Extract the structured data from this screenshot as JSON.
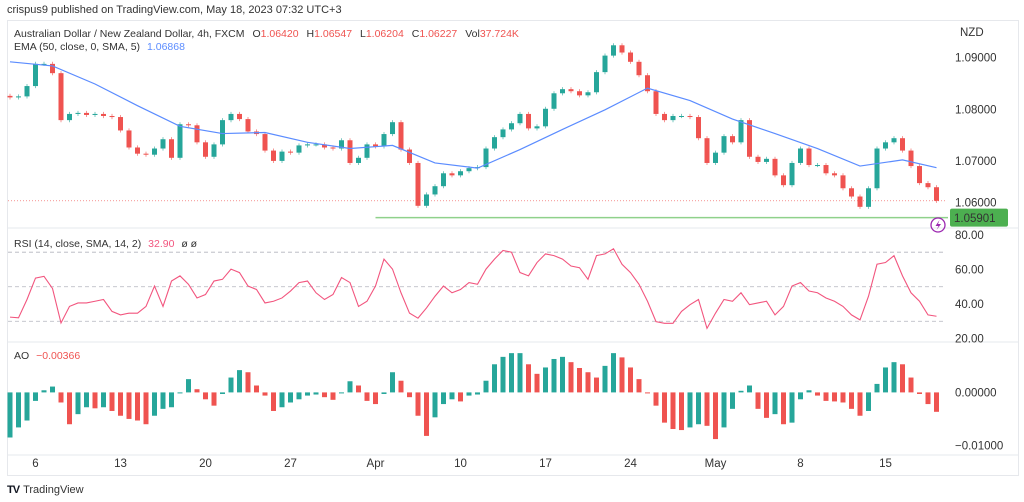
{
  "header": {
    "published": "crispus9 published on TradingView.com, May 18, 2023 07:32 UTC+3"
  },
  "legend": {
    "symbol": "Australian Dollar / New Zealand Dollar, 4h, FXCM",
    "o_label": "O",
    "o": "1.06420",
    "h_label": "H",
    "h": "1.06547",
    "l_label": "L",
    "l": "1.06204",
    "c_label": "C",
    "c": "1.06227",
    "vol_label": "Vol",
    "vol": "37.724K",
    "ema_label": "EMA (50, close, 0, SMA, 5)",
    "ema": "1.06868",
    "rsi_label": "RSI (14, close, SMA, 14, 2)",
    "rsi": "32.90",
    "rsi_extra": "ø  ø",
    "ao_label": "AO",
    "ao": "−0.00366"
  },
  "colors": {
    "up": "#26a69a",
    "down": "#ef5350",
    "ema": "#5b8cff",
    "rsi": "#f2557e",
    "support": "#8fd18b",
    "label_bg": "#4caf50",
    "alert": "#9c27b0"
  },
  "chart_data": [
    {
      "type": "candlestick",
      "currency": "NZD",
      "sampling": "12h",
      "start": "2023-03-02 12:00",
      "ylim": [
        1.057,
        1.0973
      ],
      "yticks": [
        "1.09000",
        "1.08000",
        "1.07000",
        "1.06000"
      ],
      "xticks": [
        {
          "label": "6",
          "date": "2023-03-06"
        },
        {
          "label": "13",
          "date": "2023-03-13"
        },
        {
          "label": "20",
          "date": "2023-03-20"
        },
        {
          "label": "27",
          "date": "2023-03-27"
        },
        {
          "label": "Apr",
          "date": "2023-04-03"
        },
        {
          "label": "10",
          "date": "2023-04-10"
        },
        {
          "label": "17",
          "date": "2023-04-17"
        },
        {
          "label": "24",
          "date": "2023-04-24"
        },
        {
          "label": "May",
          "date": "2023-05-01"
        },
        {
          "label": "8",
          "date": "2023-05-08"
        },
        {
          "label": "15",
          "date": "2023-05-15"
        }
      ],
      "closes": [
        1.0823,
        1.0825,
        1.0845,
        1.0888,
        1.0888,
        1.087,
        1.0779,
        1.0791,
        1.0793,
        1.0789,
        1.0791,
        1.0787,
        1.0785,
        1.0759,
        1.0726,
        1.0714,
        1.0712,
        1.0724,
        1.0742,
        1.0706,
        1.0771,
        1.0769,
        1.0736,
        1.0708,
        1.0732,
        1.0779,
        1.0791,
        1.0781,
        1.0757,
        1.0752,
        1.072,
        1.07,
        1.0718,
        1.0716,
        1.073,
        1.0732,
        1.0732,
        1.0726,
        1.0724,
        1.074,
        1.0696,
        1.0706,
        1.0732,
        1.0728,
        1.0752,
        1.0775,
        1.0722,
        1.0696,
        1.0613,
        1.0635,
        1.0651,
        1.0676,
        1.0672,
        1.068,
        1.0686,
        1.0688,
        1.0724,
        1.0746,
        1.0761,
        1.0773,
        1.0791,
        1.0763,
        1.0767,
        1.0801,
        1.0831,
        1.0839,
        1.0835,
        1.0827,
        1.0833,
        1.0872,
        1.0904,
        1.0924,
        1.091,
        1.0892,
        1.0866,
        1.0835,
        1.0791,
        1.0779,
        1.0787,
        1.0787,
        1.0785,
        1.0744,
        1.0696,
        1.0716,
        1.0748,
        1.0736,
        1.0779,
        1.0708,
        1.0698,
        1.0704,
        1.0672,
        1.0653,
        1.0696,
        1.0724,
        1.0692,
        1.0692,
        1.0676,
        1.0672,
        1.0647,
        1.0631,
        1.0611,
        1.0647,
        1.0724,
        1.0736,
        1.0744,
        1.072,
        1.069,
        1.0657,
        1.0649,
        1.06227
      ],
      "ema": [
        [
          0,
          1.0892
        ],
        [
          5,
          1.0884
        ],
        [
          10,
          1.0849
        ],
        [
          15,
          1.0807
        ],
        [
          20,
          1.0767
        ],
        [
          25,
          1.0753
        ],
        [
          30,
          1.0755
        ],
        [
          35,
          1.0736
        ],
        [
          40,
          1.0724
        ],
        [
          45,
          1.073
        ],
        [
          50,
          1.0696
        ],
        [
          55,
          1.0686
        ],
        [
          60,
          1.0722
        ],
        [
          65,
          1.0761
        ],
        [
          70,
          1.0799
        ],
        [
          75,
          1.0841
        ],
        [
          80,
          1.0817
        ],
        [
          85,
          1.0781
        ],
        [
          90,
          1.0753
        ],
        [
          95,
          1.0724
        ],
        [
          100,
          1.069
        ],
        [
          105,
          1.0702
        ],
        [
          109,
          1.06868
        ]
      ],
      "last_price": 1.06227,
      "support": {
        "value": 1.05901,
        "label": "1.05901",
        "from_date": "2023-04-03"
      }
    },
    {
      "type": "line",
      "name": "RSI",
      "ylim": [
        18,
        84
      ],
      "yticks": [
        "80.00",
        "60.00",
        "40.00",
        "20.00"
      ],
      "bands": [
        70,
        50,
        30
      ],
      "values": [
        32.4,
        32,
        42.6,
        55,
        56,
        49,
        29,
        38.6,
        40.6,
        40.6,
        41.6,
        42.6,
        35.7,
        33.7,
        34.7,
        34.7,
        38.6,
        50.4,
        38.6,
        53.3,
        56.3,
        51.4,
        43.5,
        45.5,
        53.3,
        54.3,
        60.2,
        58.2,
        50.4,
        48.4,
        40.6,
        41.6,
        43.5,
        47.5,
        52.4,
        53.3,
        46.5,
        42.6,
        45.5,
        55.3,
        52.4,
        38.6,
        41.6,
        50.4,
        66,
        60.2,
        46.5,
        34.7,
        31.8,
        37.7,
        44.5,
        50.4,
        46.5,
        48.4,
        52.4,
        51.4,
        60.2,
        66,
        71,
        70,
        58.2,
        56.3,
        64,
        69,
        68,
        66,
        62,
        61,
        54.3,
        68,
        69,
        72,
        63,
        58.2,
        51.4,
        41.6,
        29.8,
        28.8,
        28.8,
        35.7,
        39.6,
        42.6,
        25.9,
        34.7,
        42.6,
        41.6,
        46.5,
        39.6,
        40.6,
        41.6,
        33.7,
        38.6,
        50.4,
        52.4,
        47.5,
        46.5,
        43.5,
        41.6,
        38.6,
        33.7,
        30.8,
        44.5,
        63,
        64,
        68,
        56.3,
        46.5,
        41.6,
        33.7,
        32.9
      ]
    },
    {
      "type": "bar",
      "name": "AO",
      "ylim": [
        -0.0118,
        0.0095
      ],
      "yticks": [
        {
          "label": "0.00000",
          "value": 0
        },
        {
          "label": "−0.01000",
          "value": -0.01
        }
      ],
      "values": [
        -0.0085,
        -0.0066,
        -0.0053,
        -0.0016,
        0.0004,
        0.0011,
        -0.0019,
        -0.006,
        -0.0041,
        -0.0028,
        -0.003,
        -0.0028,
        -0.0035,
        -0.0044,
        -0.005,
        -0.0053,
        -0.006,
        -0.0044,
        -0.0031,
        -0.0028,
        0.0,
        0.0025,
        0.0006,
        -0.0013,
        -0.0025,
        -0.0003,
        0.0028,
        0.0042,
        0.0038,
        0.0013,
        -0.0006,
        -0.0035,
        -0.0028,
        -0.0019,
        -0.0013,
        -0.0006,
        -0.0004,
        -0.0009,
        -0.0014,
        0.0,
        0.0021,
        0.0013,
        -0.0016,
        -0.0022,
        -0.0003,
        0.0038,
        0.0022,
        -0.0009,
        -0.0044,
        -0.0082,
        -0.0047,
        -0.0022,
        -0.0013,
        -0.0017,
        -0.0006,
        -0.0004,
        0.0022,
        0.0053,
        0.0067,
        0.0074,
        0.0074,
        0.0053,
        0.0035,
        0.0047,
        0.0063,
        0.0067,
        0.0057,
        0.0046,
        0.0038,
        0.0028,
        0.005,
        0.0074,
        0.0066,
        0.0047,
        0.0025,
        0.0,
        -0.0025,
        -0.0057,
        -0.0069,
        -0.0071,
        -0.0066,
        -0.006,
        -0.0063,
        -0.0088,
        -0.0066,
        -0.0031,
        0.0003,
        0.0013,
        -0.0031,
        -0.0048,
        -0.0041,
        -0.006,
        -0.0057,
        -0.0013,
        0.0004,
        -0.0006,
        -0.0016,
        -0.0017,
        -0.0019,
        -0.0031,
        -0.0044,
        -0.0035,
        0.0016,
        0.0047,
        0.0057,
        0.0053,
        0.0028,
        -0.0003,
        -0.0022,
        -0.00366
      ]
    }
  ],
  "footer": {
    "brand": "TradingView",
    "brand_logo": "TV"
  }
}
